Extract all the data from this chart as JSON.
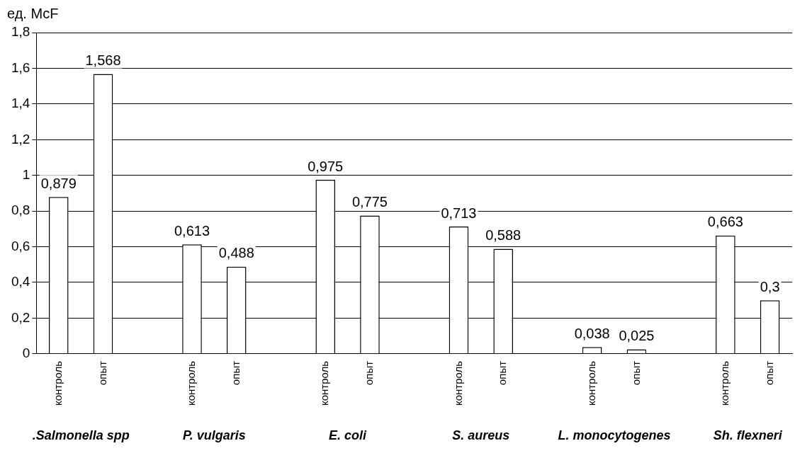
{
  "chart_data": {
    "type": "bar",
    "ylabel": "ед. McF",
    "categories": [
      "контроль",
      "опыт",
      null,
      "контроль",
      "опыт",
      null,
      "контроль",
      "опыт",
      null,
      "контроль",
      "опыт",
      null,
      "контроль",
      "опыт",
      null,
      "контроль",
      "опыт"
    ],
    "values": [
      0.879,
      1.568,
      null,
      0.613,
      0.488,
      null,
      0.975,
      0.775,
      null,
      0.713,
      0.588,
      null,
      0.038,
      0.025,
      null,
      0.663,
      0.3
    ],
    "value_labels": [
      "0,879",
      "1,568",
      null,
      "0,613",
      "0,488",
      null,
      "0,975",
      "0,775",
      null,
      "0,713",
      "0,588",
      null,
      "0,038",
      "0,025",
      null,
      "0,663",
      "0,3"
    ],
    "color": "#ffffff",
    "ylim": [
      0,
      1.8
    ],
    "yticks": [
      0,
      {
        "value": 0.2,
        "label": "0,2"
      },
      {
        "value": 0.4,
        "label": "0,4"
      },
      {
        "value": 0.6,
        "label": "0,6"
      },
      {
        "value": 0.8,
        "label": "0,8"
      },
      1,
      {
        "value": 1.2,
        "label": "1,2"
      },
      {
        "value": 1.4,
        "label": "1,4"
      },
      {
        "value": 1.6,
        "label": "1,6"
      },
      {
        "value": 1.8,
        "label": "1,8"
      }
    ],
    "grid": "y",
    "legend": false,
    "annotations": [
      ".Salmonella spp",
      "P. vulgaris",
      "E. coli",
      "S. aureus",
      "L. monocytogenes",
      "Sh. flexneri"
    ]
  }
}
